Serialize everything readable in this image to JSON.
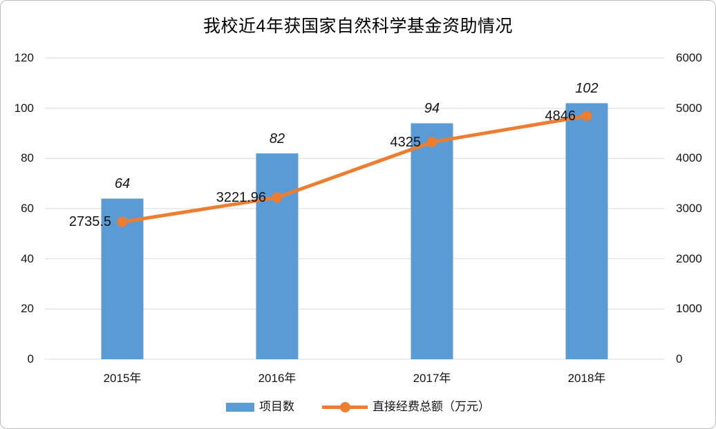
{
  "title": "我校近4年获国家自然科学基金资助情况",
  "chart_data": {
    "type": "bar",
    "subtype": "combo-bar-line",
    "title": "我校近4年获国家自然科学基金资助情况",
    "categories": [
      "2015年",
      "2016年",
      "2017年",
      "2018年"
    ],
    "series": [
      {
        "name": "项目数",
        "type": "bar",
        "axis": "left",
        "color": "#5B9BD5",
        "values": [
          64,
          82,
          94,
          102
        ],
        "labels": [
          "64",
          "82",
          "94",
          "102"
        ],
        "label_style": "italic"
      },
      {
        "name": "直接经费总额（万元）",
        "type": "line",
        "axis": "right",
        "color": "#ED7D31",
        "values": [
          2735.5,
          3221.96,
          4325,
          4846
        ],
        "labels": [
          "2735.5",
          "3221.96",
          "4325",
          "4846"
        ],
        "label_position": "left-of-point"
      }
    ],
    "left_axis": {
      "min": 0,
      "max": 120,
      "ticks": [
        0,
        20,
        40,
        60,
        80,
        100,
        120
      ]
    },
    "right_axis": {
      "min": 0,
      "max": 6000,
      "ticks": [
        0,
        1000,
        2000,
        3000,
        4000,
        5000,
        6000
      ]
    },
    "grid": true,
    "gridline_color": "#D9D9D9",
    "legend_position": "bottom"
  }
}
